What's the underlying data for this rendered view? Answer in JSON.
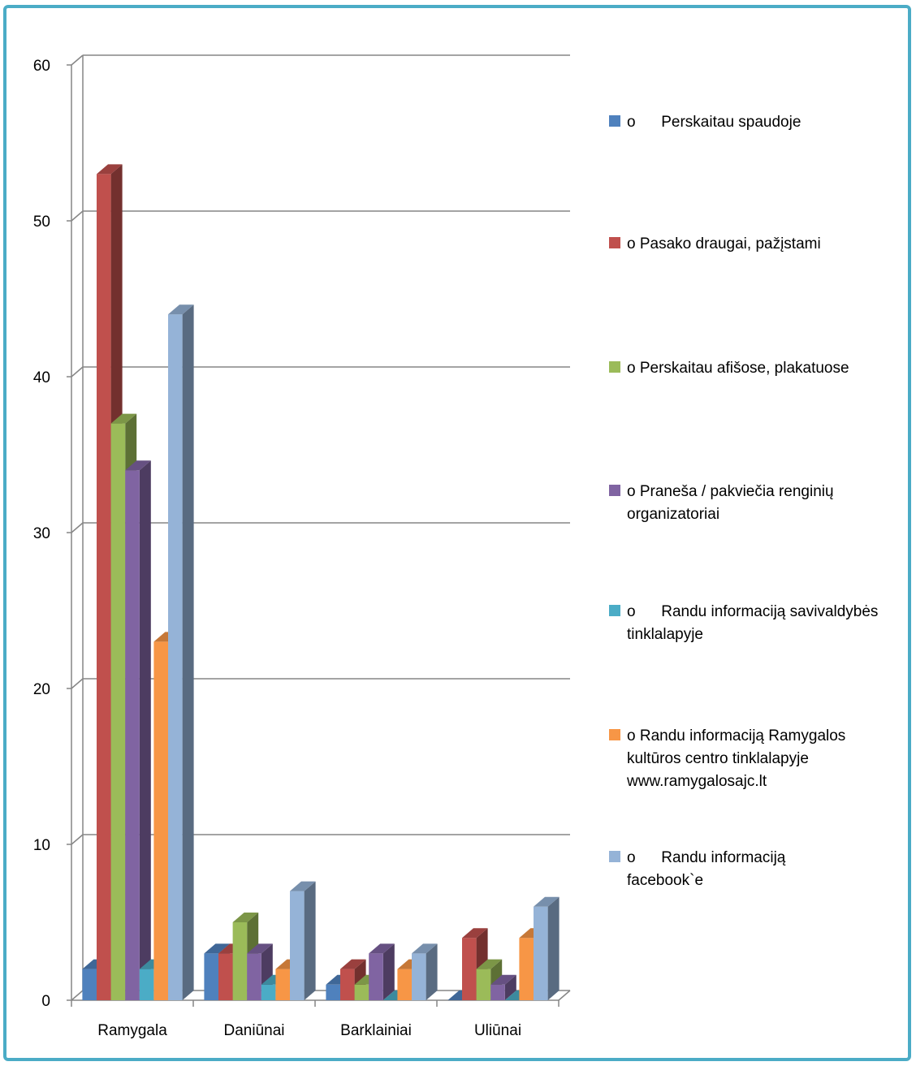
{
  "chart_data": {
    "type": "bar",
    "categories": [
      "Ramygala",
      "Daniūnai",
      "Barklainiai",
      "Uliūnai"
    ],
    "series": [
      {
        "name": "o      Perskaitau spaudoje",
        "values": [
          2,
          3,
          1,
          0
        ],
        "color": "#4f81bd"
      },
      {
        "name": "o Pasako draugai, pažįstami",
        "values": [
          53,
          3,
          2,
          4
        ],
        "color": "#c0504d"
      },
      {
        "name": "o Perskaitau afišose, plakatuose",
        "values": [
          37,
          5,
          1,
          2
        ],
        "color": "#9bbb59"
      },
      {
        "name": "o Praneša / pakviečia renginių organizatoriai",
        "values": [
          34,
          3,
          3,
          1
        ],
        "color": "#8064a2"
      },
      {
        "name": "o      Randu informaciją savivaldybės tinklalapyje",
        "values": [
          2,
          1,
          0,
          0
        ],
        "color": "#4bacc6"
      },
      {
        "name": "o Randu informaciją Ramygalos kultūros centro tinklalapyje www.ramygalosajc.lt",
        "values": [
          23,
          2,
          2,
          4
        ],
        "color": "#f79646"
      },
      {
        "name": "o      Randu informaciją facebook`e",
        "values": [
          44,
          7,
          3,
          6
        ],
        "color": "#95b3d7"
      }
    ],
    "ylim": [
      0,
      60
    ],
    "yticks": [
      0,
      10,
      20,
      30,
      40,
      50,
      60
    ],
    "grid": true,
    "legend_position": "right",
    "three_d": true
  }
}
